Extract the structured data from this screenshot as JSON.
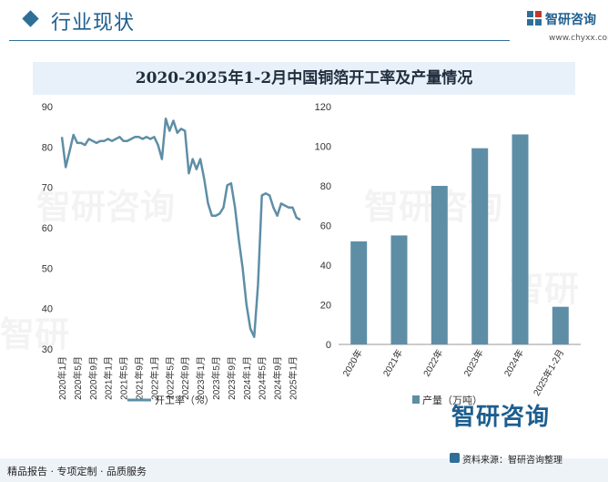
{
  "header": {
    "section_title": "行业现状",
    "logo_name": "智研咨询",
    "logo_url": "www.chyxx.com"
  },
  "title": "2020-2025年1-2月中国铜箔开工率及产量情况",
  "footer": {
    "left_text": "精品报告 · 专项定制 · 品质服务",
    "brand_mark": "智研咨询",
    "source": "资料来源：智研咨询整理"
  },
  "colors": {
    "line": "#5e8ea6",
    "bar": "#5e8ea6",
    "accent": "#2f6f97"
  },
  "chart_data": [
    {
      "type": "line",
      "name": "开工率（%）",
      "ylim": [
        30,
        90
      ],
      "yticks": [
        30,
        40,
        50,
        60,
        70,
        80,
        90
      ],
      "x_tick_labels": [
        "2020年1月",
        "2020年5月",
        "2020年9月",
        "2021年1月",
        "2021年5月",
        "2021年9月",
        "2022年1月",
        "2022年5月",
        "2022年9月",
        "2023年1月",
        "2023年5月",
        "2023年9月",
        "2024年1月",
        "2024年5月",
        "2024年9月",
        "2025年1月"
      ],
      "values": [
        82.5,
        75,
        79,
        83,
        81,
        81,
        80.5,
        82,
        81.5,
        81,
        81.5,
        81.5,
        82,
        81.5,
        82,
        82.5,
        81.5,
        81.5,
        82,
        82.5,
        82.5,
        82,
        82.5,
        82,
        82.5,
        80.5,
        77,
        87,
        84,
        86.5,
        83.5,
        84.5,
        84,
        73.5,
        77,
        74.5,
        77,
        72,
        66,
        63,
        63,
        63.5,
        65,
        70.5,
        71,
        65,
        57,
        50,
        41,
        35,
        33,
        46,
        68,
        68.5,
        68,
        65,
        63,
        66,
        65.5,
        65,
        65,
        62.5,
        62
      ]
    },
    {
      "type": "bar",
      "name": "产量（万吨）",
      "ylim": [
        0,
        120
      ],
      "yticks": [
        0,
        20,
        40,
        60,
        80,
        100,
        120
      ],
      "categories": [
        "2020年",
        "2021年",
        "2022年",
        "2023年",
        "2024年",
        "2025年1-2月"
      ],
      "values": [
        52,
        55,
        80,
        99,
        106,
        19
      ]
    }
  ]
}
